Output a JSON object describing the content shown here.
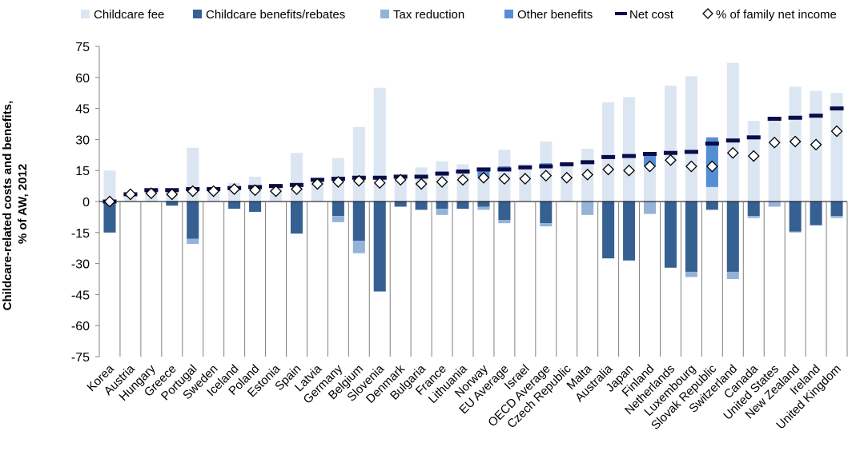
{
  "chart_data": {
    "type": "bar",
    "ylabel_line1": "Childcare-related costs and benefits,",
    "ylabel_line2": "% of AW, 2012",
    "ylim": [
      -75,
      75
    ],
    "yticks": [
      75,
      60,
      45,
      30,
      15,
      0,
      -15,
      -30,
      -45,
      -60,
      -75
    ],
    "grid": false,
    "legend_position": "top",
    "colors": {
      "fee": "#dce6f2",
      "benefits": "#376092",
      "tax": "#95b3d7",
      "other": "#558ed5",
      "net": "#0c0c4a",
      "marker_fill": "#ffffff",
      "marker_stroke": "#000000"
    },
    "legend": [
      {
        "key": "fee",
        "label": "Childcare fee",
        "kind": "box"
      },
      {
        "key": "benefits",
        "label": "Childcare benefits/rebates",
        "kind": "box"
      },
      {
        "key": "tax",
        "label": "Tax reduction",
        "kind": "box"
      },
      {
        "key": "other",
        "label": "Other benefits",
        "kind": "box"
      },
      {
        "key": "net",
        "label": "Net cost",
        "kind": "line"
      },
      {
        "key": "marker",
        "label": "% of family net income",
        "kind": "diamond"
      }
    ],
    "categories": [
      "Korea",
      "Austria",
      "Hungary",
      "Greece",
      "Portugal",
      "Sweden",
      "Iceland",
      "Poland",
      "Estonia",
      "Spain",
      "Latvia",
      "Germany",
      "Belgium",
      "Slovenia",
      "Denmark",
      "Bulgaria",
      "France",
      "Lithuania",
      "Norway",
      "EU Average",
      "Israel",
      "OECD Average",
      "Czech Republic",
      "Malta",
      "Australia",
      "Japan",
      "Finland",
      "Netherlands",
      "Luxembourg",
      "Slovak Republic",
      "Switzerland",
      "Canada",
      "United States",
      "New Zealand",
      "Ireland",
      "United Kingdom"
    ],
    "series": [
      {
        "name": "Childcare fee",
        "key": "fee",
        "values": [
          15,
          4,
          6,
          6.5,
          26,
          6,
          9,
          12,
          8,
          23.5,
          10.5,
          21,
          36,
          55,
          13,
          16.5,
          19.5,
          18,
          15,
          25,
          18,
          29,
          18,
          25.5,
          48,
          50.5,
          23,
          56,
          60.5,
          31,
          67,
          39,
          40,
          55.5,
          53.5,
          52.5
        ]
      },
      {
        "name": "Childcare benefits/rebates",
        "key": "benefits",
        "values": [
          -15,
          0,
          0,
          -2,
          -18,
          0,
          -3.5,
          -5,
          0,
          -15.5,
          0,
          -7,
          -19,
          -43.5,
          -2.5,
          -4,
          -3.5,
          -3.5,
          -2.5,
          -9,
          0,
          -10.5,
          0,
          0,
          -27.5,
          -28.5,
          0,
          -32,
          -34,
          -4,
          -34,
          -7,
          0,
          -14.5,
          -11.5,
          -7
        ]
      },
      {
        "name": "Tax reduction",
        "key": "tax",
        "values": [
          0,
          0,
          0,
          0,
          -2.5,
          0,
          0,
          0,
          0,
          0,
          0,
          -3,
          -6,
          0,
          0,
          0,
          -3,
          0,
          -1.5,
          -1.5,
          0,
          -1.5,
          0,
          -6.5,
          0,
          0,
          -6,
          0,
          -2.5,
          0,
          -3.5,
          -1,
          -2.5,
          -0.5,
          0,
          -1
        ]
      },
      {
        "name": "Other benefits",
        "key": "other",
        "values": [
          0,
          0,
          0,
          0,
          0,
          0,
          0,
          0,
          0,
          0,
          0,
          0,
          0,
          0,
          0,
          0,
          0,
          0,
          3.5,
          1.5,
          0,
          1.5,
          0,
          0,
          0,
          0,
          6,
          0,
          0,
          24,
          0,
          0,
          0,
          0,
          0,
          0
        ]
      },
      {
        "name": "Net cost",
        "key": "net",
        "values": [
          0,
          3.5,
          5.5,
          5.5,
          6,
          6,
          6.5,
          7,
          7.5,
          8,
          10.5,
          11,
          11.5,
          11.5,
          12,
          12,
          13.5,
          14.5,
          15.5,
          15.5,
          16.5,
          17,
          18,
          19,
          21.5,
          22,
          23,
          23.5,
          24,
          28,
          29.5,
          31,
          40,
          40.5,
          41.5,
          45
        ]
      },
      {
        "name": "% of family net income",
        "key": "marker",
        "values": [
          0,
          3.5,
          4,
          3.5,
          5,
          5,
          6,
          5.5,
          5,
          6,
          8.5,
          9.5,
          10,
          9,
          10.5,
          8.5,
          9.5,
          10.5,
          11.5,
          11,
          11,
          12.5,
          11.5,
          13,
          15.5,
          15,
          17,
          20,
          17,
          17,
          23.5,
          22,
          28.5,
          29,
          27.5,
          34
        ]
      }
    ]
  }
}
